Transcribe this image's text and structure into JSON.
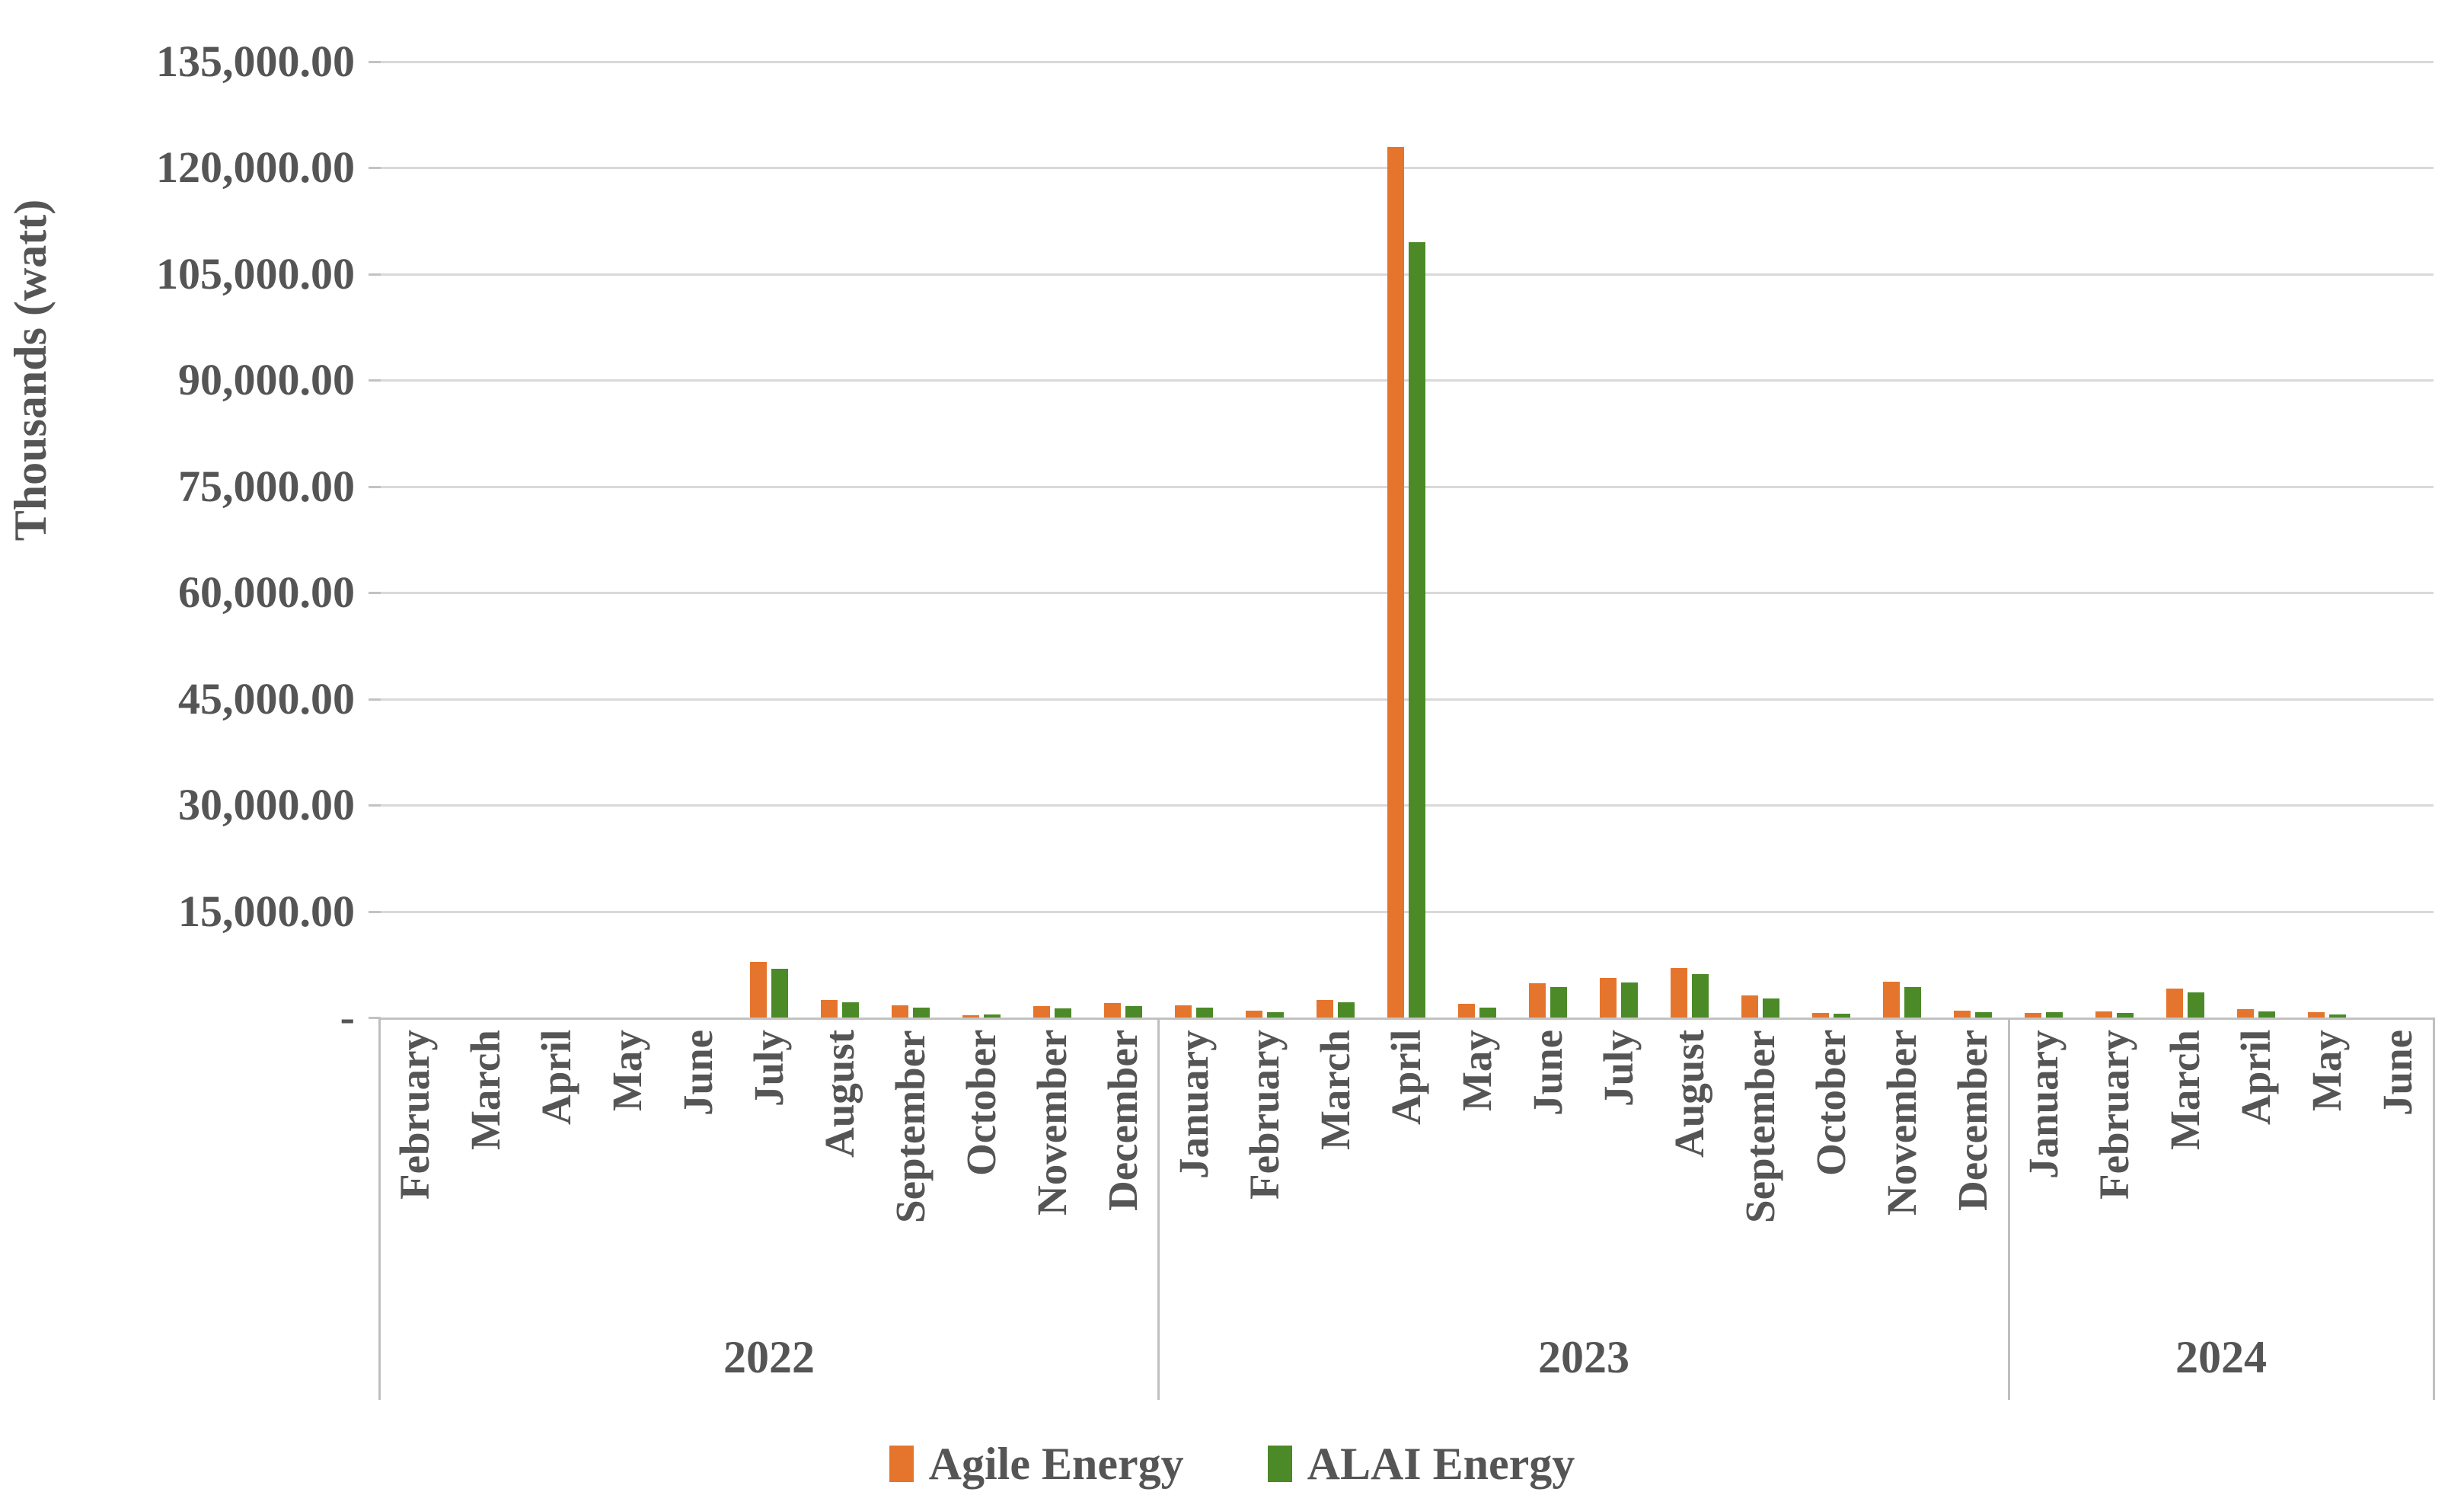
{
  "colors": {
    "agile_orange": "#E5752D",
    "alai_green": "#4C8A28",
    "gridline": "#D9D9D9",
    "axis_line": "#C2C2C2",
    "separator": "#BFBFBF",
    "text": "#555555"
  },
  "y_axis": {
    "title": "Thousands (watt)",
    "tick_labels": [
      "135,000.00",
      "120,000.00",
      "105,000.00",
      "90,000.00",
      "75,000.00",
      "60,000.00",
      "45,000.00",
      "30,000.00",
      "15,000.00",
      "-"
    ],
    "tick_values": [
      135000,
      120000,
      105000,
      90000,
      75000,
      60000,
      45000,
      30000,
      15000,
      0
    ]
  },
  "legend": {
    "items": [
      {
        "label": "Agile Energy",
        "color": "#E5752D"
      },
      {
        "label": "ALAI Energy",
        "color": "#4C8A28"
      }
    ]
  },
  "chart_data": {
    "type": "bar",
    "title": "",
    "xlabel": "",
    "ylabel": "Thousands (watt)",
    "ylim": [
      0,
      135000
    ],
    "y_tick_step": 15000,
    "grid": true,
    "legend_position": "bottom",
    "year_groups": [
      {
        "year": "2022",
        "months": [
          "February",
          "March",
          "April",
          "May",
          "June",
          "July",
          "August",
          "September",
          "October",
          "November",
          "December"
        ]
      },
      {
        "year": "2023",
        "months": [
          "January",
          "February",
          "March",
          "April",
          "May",
          "June",
          "July",
          "August",
          "September",
          "October",
          "November",
          "December"
        ]
      },
      {
        "year": "2024",
        "months": [
          "January",
          "February",
          "March",
          "April",
          "May",
          "June"
        ]
      }
    ],
    "series": [
      {
        "name": "Agile Energy",
        "color": "#E5752D",
        "values": [
          0,
          0,
          0,
          0,
          0,
          7900,
          2480,
          1730,
          360,
          1620,
          2060,
          1700,
          1000,
          2450,
          123000,
          1900,
          4850,
          5600,
          7000,
          3100,
          610,
          5100,
          1000,
          650,
          850,
          4100,
          1200,
          700,
          0
        ]
      },
      {
        "name": "ALAI Energy",
        "color": "#4C8A28",
        "values": [
          0,
          0,
          0,
          0,
          0,
          6900,
          2160,
          1400,
          470,
          1340,
          1620,
          1430,
          760,
          2200,
          109500,
          1400,
          4300,
          4950,
          6150,
          2700,
          540,
          4300,
          760,
          800,
          650,
          3550,
          900,
          450,
          0
        ]
      }
    ]
  }
}
